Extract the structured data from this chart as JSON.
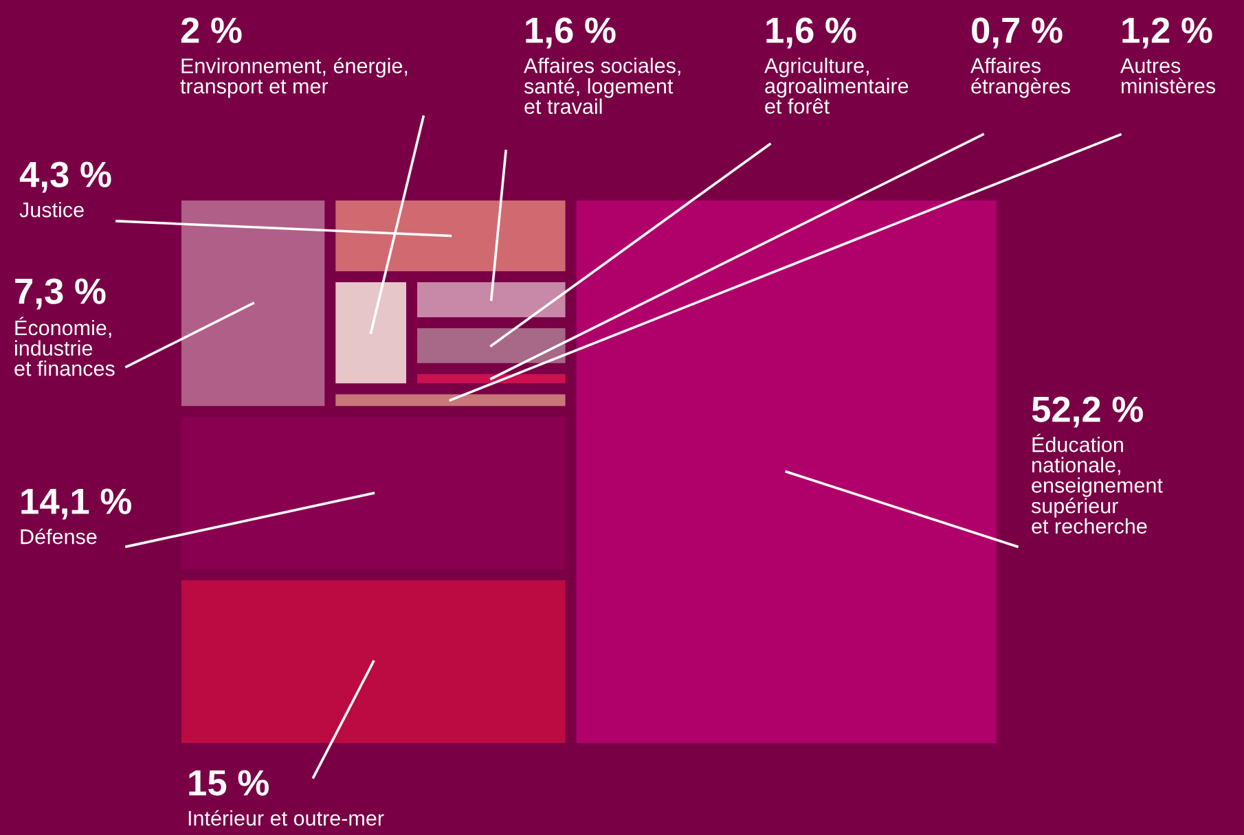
{
  "chart_data": {
    "type": "other",
    "categories": [
      "Éducation\nnationale,\nenseignement\nsupérieur\net recherche",
      "Intérieur et outre-mer",
      "Défense",
      "Économie,\nindustrie\net finances",
      "Justice",
      "Environnement, énergie,\ntransport et mer",
      "Affaires sociales,\nsanté, logement\net travail",
      "Agriculture,\nagroalimentaire\net forêt",
      "Affaires\nétrangères",
      "Autres\nministères"
    ],
    "values": [
      52.2,
      15,
      14.1,
      7.3,
      4.3,
      2,
      1.6,
      1.6,
      0.7,
      1.2
    ],
    "value_labels": [
      "52,2 %",
      "15 %",
      "14,1 %",
      "7,3 %",
      "4,3 %",
      "2 %",
      "1,6 %",
      "1,6 %",
      "0,7 %",
      "1,2 %"
    ],
    "colors": [
      "#b0006a",
      "#bc0a42",
      "#8a0050",
      "#b06088",
      "#d06a70",
      "#e6c6c8",
      "#c888a8",
      "#a86888",
      "#cc1050",
      "#c87878"
    ]
  }
}
